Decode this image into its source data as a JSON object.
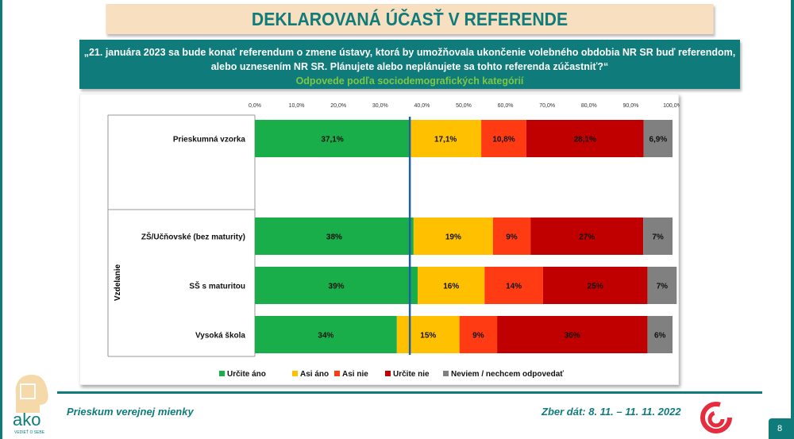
{
  "title": "DEKLAROVANÁ ÚČASŤ V REFERENDE",
  "question": "„21. januára 2023 sa bude konať referendum o zmene ústavy, ktorá by umožňovala ukončenie volebného obdobia NR SR buď referendom, alebo uznesením NR SR. Plánujete alebo neplánujete sa tohto referenda zúčastniť?“",
  "subtitle": "Odpovede podľa sociodemografických kategórií",
  "footer": {
    "left": "Prieskum verejnej mienky",
    "right": "Zber dát: 8. 11. – 11. 11. 2022",
    "page": "8",
    "logo_text": "ako",
    "logo_tagline": "VEDIEŤ O SEBE"
  },
  "chart_data": {
    "type": "bar",
    "orientation": "horizontal-stacked",
    "xlim": [
      0,
      100
    ],
    "xticks": [
      "0,0%",
      "10,0%",
      "20,0%",
      "30,0%",
      "40,0%",
      "50,0%",
      "60,0%",
      "70,0%",
      "80,0%",
      "90,0%",
      "100,0%"
    ],
    "reference_line": 37.1,
    "group_label": "Vzdelanie",
    "legend_position": "bottom",
    "series": [
      {
        "name": "Určite áno",
        "color": "#1aae4b"
      },
      {
        "name": "Asi áno",
        "color": "#ffc000"
      },
      {
        "name": "Asi nie",
        "color": "#ff3b14"
      },
      {
        "name": "Určite nie",
        "color": "#c00000"
      },
      {
        "name": "Neviem / nechcem odpovedať",
        "color": "#808080"
      }
    ],
    "rows": [
      {
        "category": "Prieskumná vzorka",
        "values": [
          37.1,
          17.1,
          10.8,
          28.1,
          6.9
        ],
        "labels": [
          "37,1%",
          "17,1%",
          "10,8%",
          "28,1%",
          "6,9%"
        ]
      },
      {
        "category": "ZŠ/Učňovské (bez maturity)",
        "values": [
          38,
          19,
          9,
          27,
          7
        ],
        "labels": [
          "38%",
          "19%",
          "9%",
          "27%",
          "7%"
        ]
      },
      {
        "category": "SŠ s maturitou",
        "values": [
          39,
          16,
          14,
          25,
          7
        ],
        "labels": [
          "39%",
          "16%",
          "14%",
          "25%",
          "7%"
        ]
      },
      {
        "category": "Vysoká škola",
        "values": [
          34,
          15,
          9,
          36,
          6
        ],
        "labels": [
          "34%",
          "15%",
          "9%",
          "36%",
          "6%"
        ]
      }
    ]
  }
}
